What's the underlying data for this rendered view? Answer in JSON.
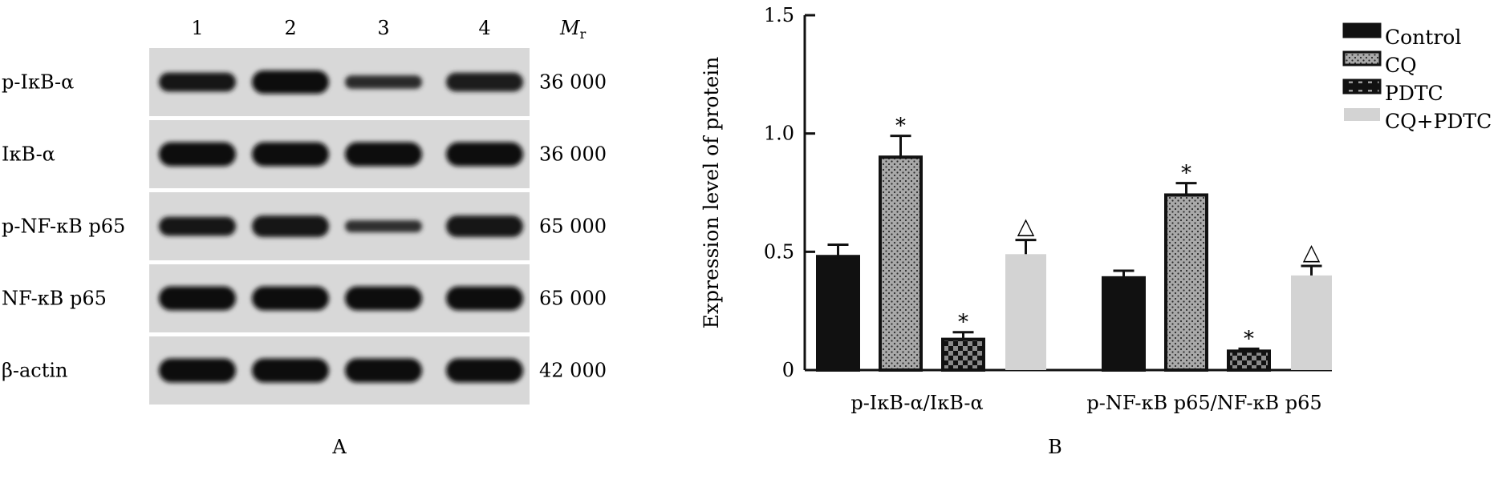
{
  "panel_a": {
    "label": "A",
    "lanes": [
      "1",
      "2",
      "3",
      "4"
    ],
    "mr_label_main": "M",
    "mr_label_sub": "r",
    "rows": [
      {
        "name": "p-IκB-α",
        "mr": "36 000",
        "band_intensity": [
          0.72,
          0.95,
          0.4,
          0.7
        ]
      },
      {
        "name": "IκB-α",
        "mr": "36 000",
        "band_intensity": [
          1.0,
          1.0,
          1.0,
          1.0
        ]
      },
      {
        "name": "p-NF-κB p65",
        "mr": "65 000",
        "band_intensity": [
          0.72,
          0.85,
          0.32,
          0.85
        ]
      },
      {
        "name": "NF-κB p65",
        "mr": "65 000",
        "band_intensity": [
          1.0,
          1.0,
          1.0,
          1.0
        ]
      },
      {
        "name": "β-actin",
        "mr": "42 000",
        "band_intensity": [
          1.0,
          1.0,
          1.0,
          1.0
        ]
      }
    ]
  },
  "chart_data": {
    "type": "bar",
    "panel_label": "B",
    "ylabel": "Expression level of protein",
    "ylim": [
      0,
      1.5
    ],
    "yticks": [
      {
        "value": 0,
        "label": "0"
      },
      {
        "value": 0.5,
        "label": "0.5"
      },
      {
        "value": 1.0,
        "label": "1.0"
      },
      {
        "value": 1.5,
        "label": "1.5"
      }
    ],
    "categories": [
      "p-IκB-α/IκB-α",
      "p-NF-κB p65/NF-κB p65"
    ],
    "legend_position": "top-right",
    "series": [
      {
        "name": "Control",
        "pattern": "solid-black",
        "values": [
          0.48,
          0.39
        ],
        "errors": [
          0.05,
          0.03
        ],
        "marks": [
          "",
          ""
        ]
      },
      {
        "name": "CQ",
        "pattern": "dotted-gray",
        "values": [
          0.9,
          0.74
        ],
        "errors": [
          0.09,
          0.05
        ],
        "marks": [
          "*",
          "*"
        ]
      },
      {
        "name": "PDTC",
        "pattern": "checker-dark",
        "values": [
          0.13,
          0.08
        ],
        "errors": [
          0.03,
          0.01
        ],
        "marks": [
          "*",
          "*"
        ]
      },
      {
        "name": "CQ+PDTC",
        "pattern": "solid-light-gray",
        "values": [
          0.49,
          0.4
        ],
        "errors": [
          0.06,
          0.04
        ],
        "marks": [
          "△",
          "△"
        ]
      }
    ]
  }
}
